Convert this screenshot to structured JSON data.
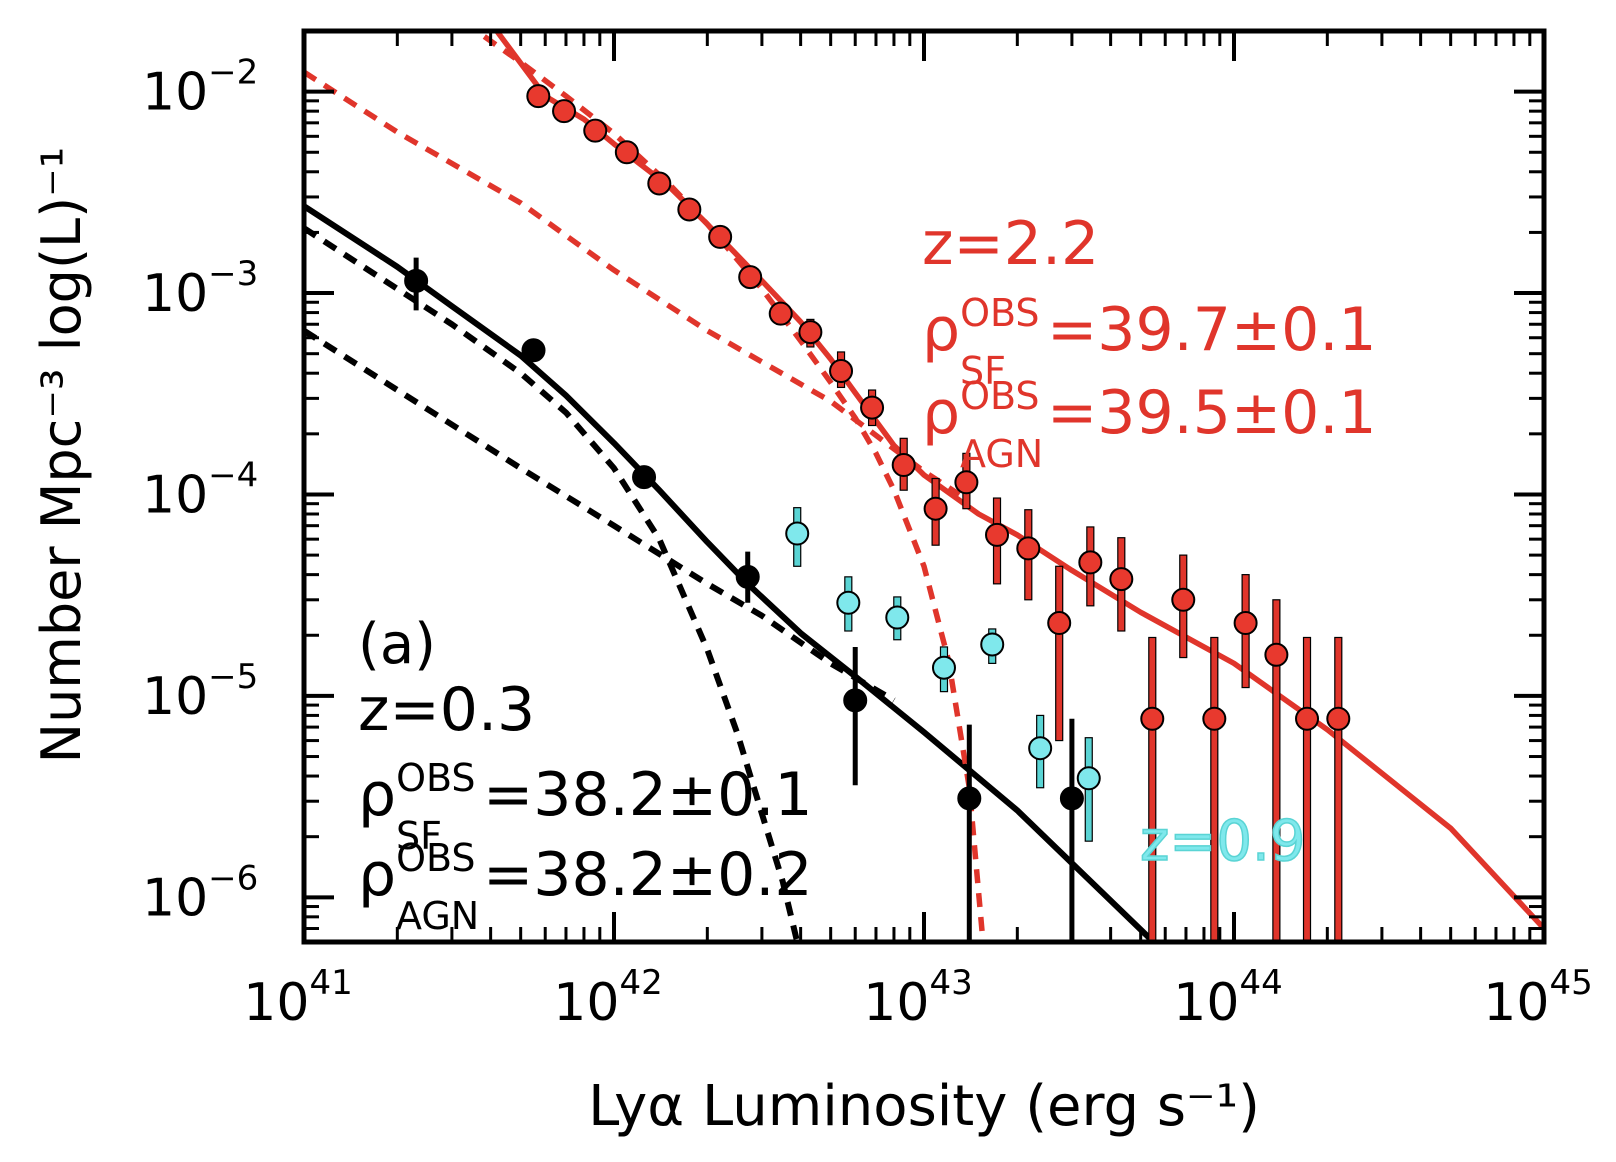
{
  "chart_data": {
    "type": "scatter",
    "title": "",
    "xlabel": "Lyα Luminosity (erg s⁻¹)",
    "ylabel": "Number Mpc⁻³ log(L)⁻¹",
    "xscale": "log",
    "yscale": "log",
    "xlim": [
      1e+41,
      1e+45
    ],
    "ylim": [
      6e-07,
      0.02
    ],
    "grid": false,
    "x_tick_labels": [
      {
        "base": "10",
        "exp": "41",
        "value": 1e+41
      },
      {
        "base": "10",
        "exp": "42",
        "value": 1e+42
      },
      {
        "base": "10",
        "exp": "43",
        "value": 1e+43
      },
      {
        "base": "10",
        "exp": "44",
        "value": 1e+44
      },
      {
        "base": "10",
        "exp": "45",
        "value": 1e+45
      }
    ],
    "y_tick_labels": [
      {
        "base": "10",
        "exp": "−2",
        "value": 0.01
      },
      {
        "base": "10",
        "exp": "−3",
        "value": 0.001
      },
      {
        "base": "10",
        "exp": "−4",
        "value": 0.0001
      },
      {
        "base": "10",
        "exp": "−5",
        "value": 1e-05
      },
      {
        "base": "10",
        "exp": "−6",
        "value": 1e-06
      }
    ],
    "colors": {
      "z03": "#000000",
      "z22": "#e0352b",
      "z22_fill": "#e8392e",
      "z09": "#5ad4d4",
      "z09_fill": "#7fe8ec"
    },
    "series": [
      {
        "name": "z=0.3",
        "kind": "points",
        "color": "#000000",
        "points": [
          {
            "x": 2.3e+41,
            "y": 0.00115,
            "ylo": 0.00082,
            "yhi": 0.0015
          },
          {
            "x": 5.5e+41,
            "y": 0.00052
          },
          {
            "x": 1.25e+42,
            "y": 0.000122
          },
          {
            "x": 2.7e+42,
            "y": 3.9e-05,
            "ylo": 2.9e-05,
            "yhi": 5.2e-05
          },
          {
            "x": 6e+42,
            "y": 9.5e-06,
            "ylo": 3.6e-06,
            "yhi": 1.75e-05
          },
          {
            "x": 1.4e+43,
            "y": 3.1e-06,
            "ylo": 6e-07,
            "yhi": 7.2e-06
          },
          {
            "x": 3e+43,
            "y": 3.1e-06,
            "ylo": 6e-07,
            "yhi": 7.7e-06
          }
        ]
      },
      {
        "name": "z=2.2",
        "kind": "points",
        "color": "#e0352b",
        "points": [
          {
            "x": 5.7e+41,
            "y": 0.0095
          },
          {
            "x": 6.9e+41,
            "y": 0.008
          },
          {
            "x": 8.7e+41,
            "y": 0.0064
          },
          {
            "x": 1.1e+42,
            "y": 0.005
          },
          {
            "x": 1.4e+42,
            "y": 0.0035
          },
          {
            "x": 1.75e+42,
            "y": 0.0026
          },
          {
            "x": 2.2e+42,
            "y": 0.0019
          },
          {
            "x": 2.75e+42,
            "y": 0.0012
          },
          {
            "x": 3.45e+42,
            "y": 0.00079
          },
          {
            "x": 4.3e+42,
            "y": 0.00064,
            "ylo": 0.00054,
            "yhi": 0.00074
          },
          {
            "x": 5.4e+42,
            "y": 0.00041,
            "ylo": 0.00034,
            "yhi": 0.00051
          },
          {
            "x": 6.8e+42,
            "y": 0.00027,
            "ylo": 0.00022,
            "yhi": 0.00033
          },
          {
            "x": 8.6e+42,
            "y": 0.00014,
            "ylo": 0.000105,
            "yhi": 0.00019
          },
          {
            "x": 1.09e+43,
            "y": 8.5e-05,
            "ylo": 5.6e-05,
            "yhi": 0.00012
          },
          {
            "x": 1.37e+43,
            "y": 0.000115,
            "ylo": 8.5e-05,
            "yhi": 0.00016
          },
          {
            "x": 1.72e+43,
            "y": 6.3e-05,
            "ylo": 3.6e-05,
            "yhi": 9.6e-05
          },
          {
            "x": 2.17e+43,
            "y": 5.4e-05,
            "ylo": 3e-05,
            "yhi": 8.4e-05
          },
          {
            "x": 2.73e+43,
            "y": 2.3e-05,
            "ylo": 6e-06,
            "yhi": 4.4e-05
          },
          {
            "x": 3.44e+43,
            "y": 4.6e-05,
            "ylo": 2.8e-05,
            "yhi": 6.9e-05
          },
          {
            "x": 4.33e+43,
            "y": 3.8e-05,
            "ylo": 2.1e-05,
            "yhi": 6.1e-05
          },
          {
            "x": 5.45e+43,
            "y": 7.7e-06,
            "ylo": 6e-07,
            "yhi": 1.95e-05
          },
          {
            "x": 6.86e+43,
            "y": 3e-05,
            "ylo": 1.55e-05,
            "yhi": 5e-05
          },
          {
            "x": 8.64e+43,
            "y": 7.7e-06,
            "ylo": 6e-07,
            "yhi": 1.95e-05
          },
          {
            "x": 1.09e+44,
            "y": 2.3e-05,
            "ylo": 1.1e-05,
            "yhi": 4e-05
          },
          {
            "x": 1.37e+44,
            "y": 1.6e-05,
            "ylo": 6e-07,
            "yhi": 3e-05
          },
          {
            "x": 1.72e+44,
            "y": 7.7e-06,
            "ylo": 6e-07,
            "yhi": 1.95e-05
          },
          {
            "x": 2.17e+44,
            "y": 7.7e-06,
            "ylo": 6e-07,
            "yhi": 1.95e-05
          }
        ]
      },
      {
        "name": "z=0.9",
        "kind": "points",
        "color": "#5ad4d4",
        "points": [
          {
            "x": 3.9e+42,
            "y": 6.4e-05,
            "ylo": 4.4e-05,
            "yhi": 8.6e-05
          },
          {
            "x": 5.7e+42,
            "y": 2.9e-05,
            "ylo": 2.1e-05,
            "yhi": 3.9e-05
          },
          {
            "x": 8.2e+42,
            "y": 2.45e-05,
            "ylo": 1.9e-05,
            "yhi": 3.1e-05
          },
          {
            "x": 1.16e+43,
            "y": 1.38e-05,
            "ylo": 1.05e-05,
            "yhi": 1.75e-05
          },
          {
            "x": 1.66e+43,
            "y": 1.8e-05,
            "ylo": 1.45e-05,
            "yhi": 2.15e-05
          },
          {
            "x": 2.37e+43,
            "y": 5.5e-06,
            "ylo": 3.5e-06,
            "yhi": 8e-06
          },
          {
            "x": 3.4e+43,
            "y": 3.9e-06,
            "ylo": 1.9e-06,
            "yhi": 6.2e-06
          }
        ]
      },
      {
        "name": "z=0.3 total fit",
        "kind": "line",
        "style": "solid",
        "color": "#000000",
        "x": [
          1e+41,
          2e+41,
          3e+41,
          5e+41,
          7e+41,
          1e+42,
          1.4e+42,
          2e+42,
          2.7e+42,
          4e+42,
          6e+42,
          1e+43,
          2e+43,
          5.5e+43
        ],
        "y": [
          0.0027,
          0.00135,
          0.00086,
          0.00049,
          0.00031,
          0.00018,
          0.000105,
          5.8e-05,
          3.6e-05,
          2.05e-05,
          1.25e-05,
          6.6e-06,
          2.7e-06,
          6e-07
        ]
      },
      {
        "name": "z=0.3 star-forming fit",
        "kind": "line",
        "style": "dashed",
        "color": "#000000",
        "x": [
          1e+41,
          3e+41,
          5e+41,
          7e+41,
          1e+42,
          1.4e+42,
          2e+42,
          2.5e+42,
          3e+42,
          3.5e+42,
          3.9e+42
        ],
        "y": [
          0.0021,
          0.0007,
          0.0004,
          0.000255,
          0.000135,
          6e-05,
          1.7e-05,
          6.5e-06,
          2.6e-06,
          1.2e-06,
          6e-07
        ]
      },
      {
        "name": "z=0.3 AGN fit",
        "kind": "line",
        "style": "dashed",
        "color": "#000000",
        "x": [
          1e+41,
          2e+41,
          5e+41,
          1e+42,
          2e+42,
          3e+42,
          5e+42,
          8e+42
        ],
        "y": [
          0.00065,
          0.00033,
          0.000135,
          7e-05,
          3.6e-05,
          2.5e-05,
          1.45e-05,
          9.5e-06
        ]
      },
      {
        "name": "z=2.2 total fit",
        "kind": "line",
        "style": "solid",
        "color": "#e0352b",
        "x": [
          4e+41,
          6e+41,
          8e+41,
          1e+42,
          1.5e+42,
          2e+42,
          3e+42,
          4e+42,
          5e+42,
          6e+42,
          8e+42,
          1e+43,
          1.5e+43,
          2e+43,
          3e+43,
          5e+43,
          1e+44,
          2e+44,
          5e+44,
          1e+45
        ],
        "y": [
          0.022,
          0.0095,
          0.0073,
          0.0055,
          0.0034,
          0.0022,
          0.00115,
          0.00072,
          0.00047,
          0.00032,
          0.000175,
          0.000125,
          8e-05,
          6.3e-05,
          4.2e-05,
          2.6e-05,
          1.45e-05,
          6.8e-06,
          2.2e-06,
          7e-07
        ]
      },
      {
        "name": "z=2.2 star-forming fit",
        "kind": "line",
        "style": "dashed",
        "color": "#e0352b",
        "x": [
          3.3e+41,
          5e+41,
          7e+41,
          1e+42,
          1.5e+42,
          2e+42,
          3e+42,
          4e+42,
          5e+42,
          6e+42,
          7e+42,
          8e+42,
          1e+43,
          1.2e+43,
          1.4e+43,
          1.55e+43
        ],
        "y": [
          0.022,
          0.014,
          0.0095,
          0.0062,
          0.0035,
          0.0022,
          0.00105,
          0.00058,
          0.00036,
          0.00024,
          0.00016,
          0.000105,
          4.4e-05,
          1.5e-05,
          3.5e-06,
          6e-07
        ]
      },
      {
        "name": "z=2.2 AGN fit",
        "kind": "line",
        "style": "dashed",
        "color": "#e0352b",
        "x": [
          1e+41,
          2e+41,
          5e+41,
          1e+42,
          2e+42,
          5e+42,
          1e+43,
          1.3e+43
        ],
        "y": [
          0.0125,
          0.0063,
          0.0028,
          0.0013,
          0.00065,
          0.00029,
          0.00013,
          0.0001
        ]
      }
    ],
    "annotations": {
      "a03": {
        "panel": "(a)",
        "z": "z=0.3",
        "rho_sym_sf": "ρ",
        "rho_sup_sf": "OBS",
        "rho_sub_sf": "SF",
        "rho_val_sf": "=38.2±0.1",
        "rho_sym_agn": "ρ",
        "rho_sup_agn": "OBS",
        "rho_sub_agn": "AGN",
        "rho_val_agn": "=38.2±0.2"
      },
      "a22": {
        "z": "z=2.2",
        "rho_sym_sf": "ρ",
        "rho_sup_sf": "OBS",
        "rho_sub_sf": "SF",
        "rho_val_sf": "=39.7±0.1",
        "rho_sym_agn": "ρ",
        "rho_sup_agn": "OBS",
        "rho_sub_agn": "AGN",
        "rho_val_agn": "=39.5±0.1"
      },
      "a09": {
        "z": "z=0.9"
      }
    }
  }
}
